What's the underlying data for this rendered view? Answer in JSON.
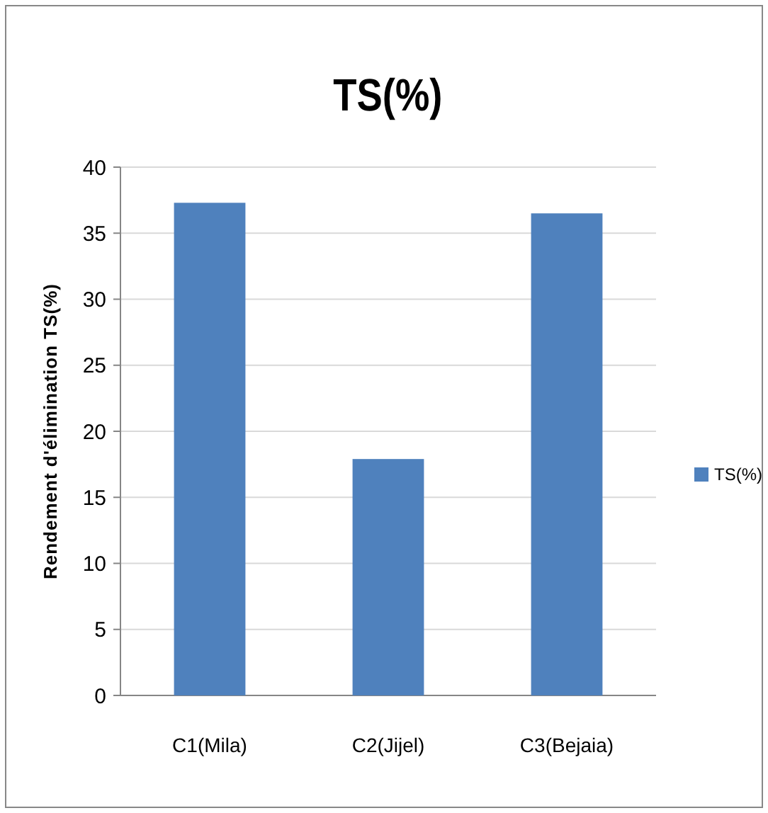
{
  "chart_data": {
    "type": "bar",
    "title": "TS(%)",
    "ylabel": "Rendement d'élimination TS(%)",
    "categories": [
      "C1(Mila)",
      "C2(Jijel)",
      "C3(Bejaia)"
    ],
    "series": [
      {
        "name": "TS(%)",
        "color": "#4f81bd",
        "values": [
          37.3,
          17.9,
          36.5
        ]
      }
    ],
    "ylim": [
      0,
      40
    ],
    "yticks": [
      0,
      5,
      10,
      15,
      20,
      25,
      30,
      35,
      40
    ],
    "grid": "y",
    "legend": "right"
  }
}
